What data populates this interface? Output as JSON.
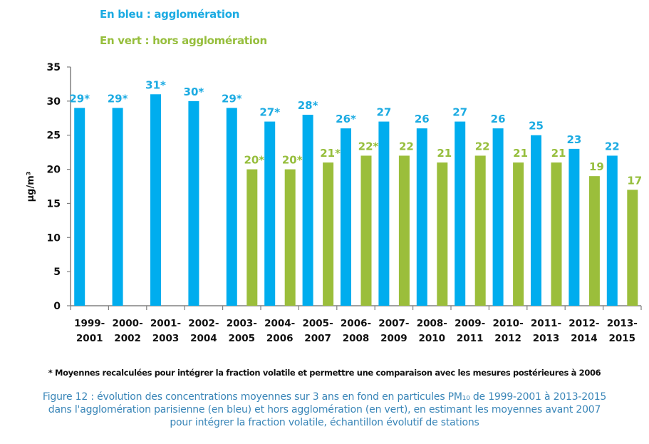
{
  "legend": {
    "blue": "En bleu : agglomération",
    "green": "En vert : hors agglomération"
  },
  "footnote": "* Moyennes recalculées pour intégrer la fraction volatile et permettre une comparaison avec les mesures postérieures à 2006",
  "caption": {
    "line1": "Figure 12 : évolution des concentrations moyennes sur 3 ans en fond en particules PM₁₀ de 1999-2001 à 2013-2015",
    "line2": "dans l'agglomération parisienne (en bleu) et hors agglomération (en vert), en estimant les moyennes avant 2007",
    "line3": "pour intégrer la fraction volatile, échantillon évolutif de stations"
  },
  "colors": {
    "agglomeration": "#00adee",
    "hors_agglomeration": "#9bbe3b",
    "axis": "#808080"
  },
  "chart_data": {
    "type": "bar",
    "title": "",
    "xlabel": "",
    "ylabel": "µg/m³",
    "ylim": [
      0,
      35
    ],
    "yticks": [
      0,
      5,
      10,
      15,
      20,
      25,
      30,
      35
    ],
    "grid": false,
    "legend_placement": "top-left (text above chart)",
    "categories": [
      [
        "1999-",
        "2001"
      ],
      [
        "2000-",
        "2002"
      ],
      [
        "2001-",
        "2003"
      ],
      [
        "2002-",
        "2004"
      ],
      [
        "2003-",
        "2005"
      ],
      [
        "2004-",
        "2006"
      ],
      [
        "2005-",
        "2007"
      ],
      [
        "2006-",
        "2008"
      ],
      [
        "2007-",
        "2009"
      ],
      [
        "2008-",
        "2010"
      ],
      [
        "2009-",
        "2011"
      ],
      [
        "2010-",
        "2012"
      ],
      [
        "2011-",
        "2013"
      ],
      [
        "2012-",
        "2014"
      ],
      [
        "2013-",
        "2015"
      ]
    ],
    "series": [
      {
        "name": "agglomération",
        "color": "#00adee",
        "values": [
          29,
          29,
          31,
          30,
          29,
          27,
          28,
          26,
          27,
          26,
          27,
          26,
          25,
          23,
          22
        ],
        "labels": [
          "29*",
          "29*",
          "31*",
          "30*",
          "29*",
          "27*",
          "28*",
          "26*",
          "27",
          "26",
          "27",
          "26",
          "25",
          "23",
          "22"
        ]
      },
      {
        "name": "hors agglomération",
        "color": "#9bbe3b",
        "values": [
          null,
          null,
          null,
          null,
          20,
          20,
          21,
          22,
          22,
          21,
          22,
          21,
          21,
          19,
          17
        ],
        "labels": [
          null,
          null,
          null,
          null,
          "20*",
          "20*",
          "21*",
          "22*",
          "22",
          "21",
          "22",
          "21",
          "21",
          "19",
          "17"
        ]
      }
    ]
  }
}
